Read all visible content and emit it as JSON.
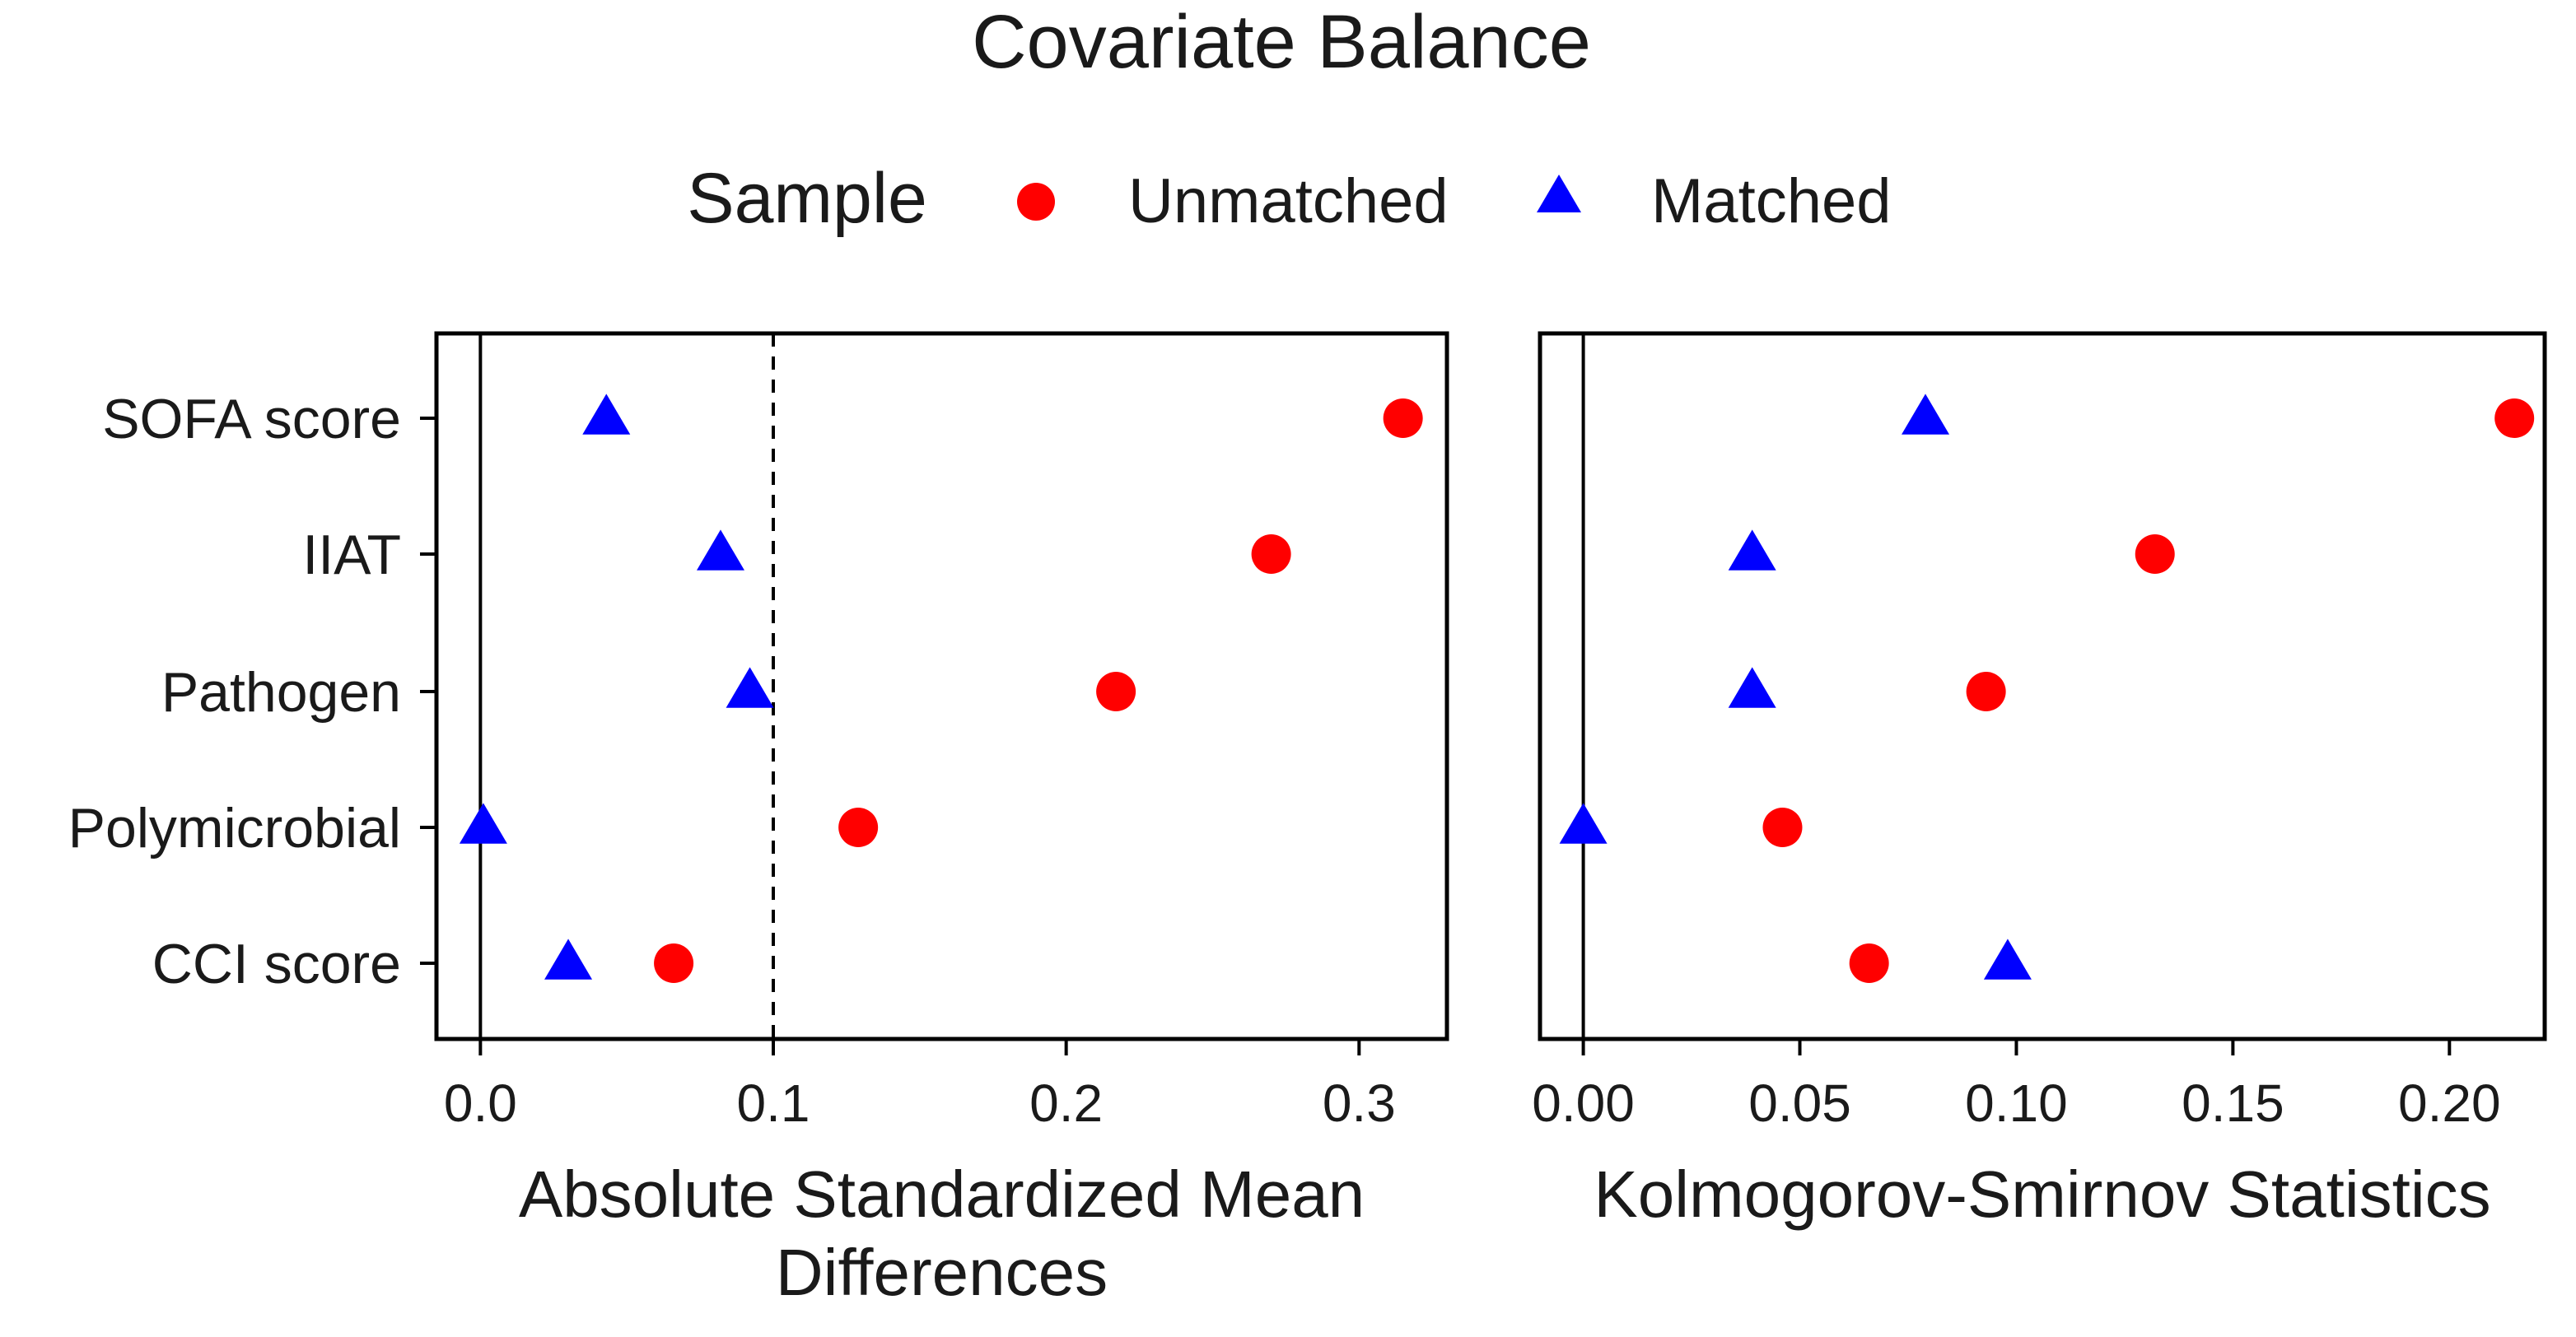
{
  "chart_data": {
    "type": "scatter",
    "title": "Covariate Balance",
    "legend": {
      "title": "Sample",
      "placement": "top",
      "entries": [
        {
          "name": "Unmatched",
          "marker": "circle",
          "color": "#ff0000"
        },
        {
          "name": "Matched",
          "marker": "triangle",
          "color": "#0000ff"
        }
      ]
    },
    "categories": [
      "SOFA score",
      "IIAT",
      "Pathogen",
      "Polymicrobial",
      "CCI score"
    ],
    "panels": [
      {
        "id": "smd",
        "xlabel": [
          "Absolute Standardized Mean",
          "Differences"
        ],
        "xlim": [
          -0.015,
          0.33
        ],
        "xticks": [
          0.0,
          0.1,
          0.2,
          0.3
        ],
        "xtick_labels": [
          "0.0",
          "0.1",
          "0.2",
          "0.3"
        ],
        "zero_line": 0,
        "threshold_line": 0.1,
        "series": [
          {
            "name": "Unmatched",
            "values": [
              0.315,
              0.27,
              0.217,
              0.129,
              0.066
            ]
          },
          {
            "name": "Matched",
            "values": [
              0.043,
              0.082,
              0.092,
              0.001,
              0.03
            ]
          }
        ]
      },
      {
        "id": "ks",
        "xlabel": [
          "Kolmogorov-Smirnov Statistics"
        ],
        "xlim": [
          -0.01,
          0.222
        ],
        "xticks": [
          0.0,
          0.05,
          0.1,
          0.15,
          0.2
        ],
        "xtick_labels": [
          "0.00",
          "0.05",
          "0.10",
          "0.15",
          "0.20"
        ],
        "zero_line": 0,
        "threshold_line": null,
        "series": [
          {
            "name": "Unmatched",
            "values": [
              0.215,
              0.132,
              0.093,
              0.046,
              0.066
            ]
          },
          {
            "name": "Matched",
            "values": [
              0.079,
              0.039,
              0.039,
              0.0,
              0.098
            ]
          }
        ]
      }
    ],
    "colors": {
      "unmatched": "#ff0000",
      "matched": "#0000ff",
      "axis": "#000000",
      "text": "#1a1a1a"
    }
  }
}
